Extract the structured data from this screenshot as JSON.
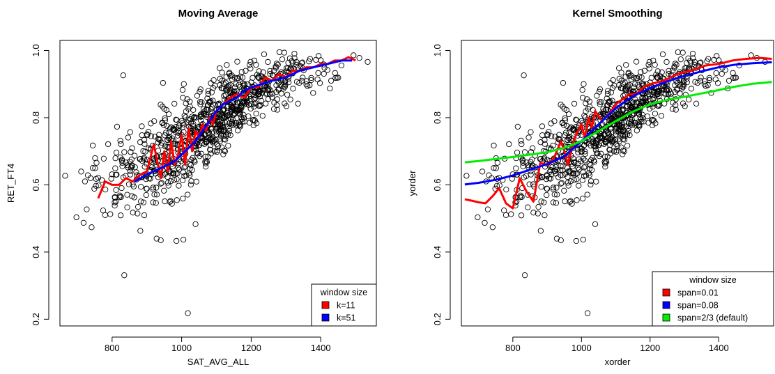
{
  "chart_data": [
    {
      "type": "scatter",
      "title": "Moving Average",
      "xlabel": "SAT_AVG_ALL",
      "ylabel": "RET_FT4",
      "xlim": [
        650,
        1560
      ],
      "ylim": [
        0.18,
        1.03
      ],
      "xticks": [
        800,
        1000,
        1200,
        1400
      ],
      "yticks": [
        0.2,
        0.4,
        0.6,
        0.8,
        1.0
      ],
      "ytick_labels": [
        "0.2",
        "0.4",
        "0.6",
        "0.8",
        "1.0"
      ],
      "legend": {
        "title": "window size",
        "position": "bottom-right",
        "entries": [
          {
            "label": "k=11",
            "color": "#ff0000"
          },
          {
            "label": "k=51",
            "color": "#0000ff"
          }
        ]
      },
      "outliers": [
        {
          "x": 665,
          "y": 0.627
        },
        {
          "x": 718,
          "y": 0.487
        },
        {
          "x": 727,
          "y": 0.527
        },
        {
          "x": 760,
          "y": 0.621
        },
        {
          "x": 776,
          "y": 0.678
        },
        {
          "x": 780,
          "y": 0.51
        },
        {
          "x": 832,
          "y": 0.926
        },
        {
          "x": 835,
          "y": 0.331
        },
        {
          "x": 1018,
          "y": 0.218
        },
        {
          "x": 985,
          "y": 0.433
        },
        {
          "x": 1005,
          "y": 0.437
        },
        {
          "x": 1040,
          "y": 0.483
        },
        {
          "x": 940,
          "y": 0.435
        },
        {
          "x": 1535,
          "y": 0.966
        },
        {
          "x": 1430,
          "y": 0.91
        }
      ],
      "series": [
        {
          "name": "k=11",
          "color": "#ff0000",
          "x": [
            760,
            780,
            800,
            820,
            840,
            860,
            880,
            900,
            920,
            940,
            950,
            960,
            970,
            980,
            990,
            1000,
            1010,
            1020,
            1030,
            1040,
            1050,
            1060,
            1070,
            1080,
            1090,
            1100,
            1110,
            1120,
            1140,
            1160,
            1180,
            1200,
            1220,
            1240,
            1260,
            1280,
            1300,
            1320,
            1340,
            1360,
            1380,
            1400,
            1420,
            1440,
            1460,
            1480,
            1500
          ],
          "y": [
            0.56,
            0.61,
            0.6,
            0.6,
            0.62,
            0.61,
            0.63,
            0.64,
            0.72,
            0.62,
            0.7,
            0.64,
            0.73,
            0.66,
            0.69,
            0.75,
            0.66,
            0.77,
            0.7,
            0.76,
            0.74,
            0.78,
            0.76,
            0.8,
            0.78,
            0.82,
            0.83,
            0.84,
            0.86,
            0.87,
            0.86,
            0.89,
            0.89,
            0.92,
            0.91,
            0.93,
            0.92,
            0.94,
            0.94,
            0.95,
            0.95,
            0.96,
            0.96,
            0.97,
            0.97,
            0.98,
            0.97
          ]
        },
        {
          "name": "k=51",
          "color": "#0000ff",
          "x": [
            865,
            900,
            940,
            980,
            1000,
            1020,
            1040,
            1060,
            1080,
            1100,
            1120,
            1140,
            1160,
            1180,
            1200,
            1230,
            1260,
            1300,
            1340,
            1380,
            1420,
            1460,
            1490
          ],
          "y": [
            0.61,
            0.63,
            0.65,
            0.67,
            0.69,
            0.71,
            0.73,
            0.76,
            0.79,
            0.82,
            0.84,
            0.85,
            0.86,
            0.88,
            0.89,
            0.9,
            0.91,
            0.92,
            0.94,
            0.95,
            0.96,
            0.97,
            0.97
          ]
        }
      ]
    },
    {
      "type": "scatter",
      "title": "Kernel Smoothing",
      "xlabel": "xorder",
      "ylabel": "yorder",
      "xlim": [
        650,
        1560
      ],
      "ylim": [
        0.18,
        1.03
      ],
      "xticks": [
        800,
        1000,
        1200,
        1400
      ],
      "yticks": [
        0.2,
        0.4,
        0.6,
        0.8,
        1.0
      ],
      "ytick_labels": [
        "0.2",
        "0.4",
        "0.6",
        "0.8",
        "1.0"
      ],
      "legend": {
        "title": "window size",
        "position": "bottom-right",
        "entries": [
          {
            "label": "span=0.01",
            "color": "#ff0000"
          },
          {
            "label": "span=0.08",
            "color": "#0000ff"
          },
          {
            "label": "span=2/3 (default)",
            "color": "#00ee00"
          }
        ]
      },
      "outliers": [
        {
          "x": 665,
          "y": 0.627
        },
        {
          "x": 718,
          "y": 0.487
        },
        {
          "x": 727,
          "y": 0.527
        },
        {
          "x": 760,
          "y": 0.621
        },
        {
          "x": 776,
          "y": 0.678
        },
        {
          "x": 780,
          "y": 0.51
        },
        {
          "x": 832,
          "y": 0.926
        },
        {
          "x": 835,
          "y": 0.331
        },
        {
          "x": 1018,
          "y": 0.218
        },
        {
          "x": 985,
          "y": 0.433
        },
        {
          "x": 1005,
          "y": 0.437
        },
        {
          "x": 1040,
          "y": 0.483
        },
        {
          "x": 940,
          "y": 0.435
        },
        {
          "x": 1535,
          "y": 0.966
        },
        {
          "x": 1430,
          "y": 0.91
        }
      ],
      "series": [
        {
          "name": "span=0.01",
          "color": "#ff0000",
          "x": [
            660,
            680,
            700,
            720,
            740,
            760,
            780,
            800,
            820,
            840,
            860,
            880,
            900,
            920,
            940,
            950,
            960,
            980,
            1000,
            1010,
            1020,
            1030,
            1040,
            1060,
            1080,
            1100,
            1120,
            1140,
            1160,
            1180,
            1200,
            1240,
            1280,
            1320,
            1360,
            1400,
            1440,
            1480,
            1520,
            1555
          ],
          "y": [
            0.557,
            0.553,
            0.548,
            0.545,
            0.565,
            0.59,
            0.545,
            0.53,
            0.62,
            0.58,
            0.55,
            0.665,
            0.66,
            0.68,
            0.73,
            0.7,
            0.66,
            0.74,
            0.78,
            0.74,
            0.8,
            0.77,
            0.82,
            0.79,
            0.81,
            0.84,
            0.855,
            0.87,
            0.87,
            0.89,
            0.9,
            0.91,
            0.93,
            0.94,
            0.955,
            0.96,
            0.97,
            0.975,
            0.978,
            0.975
          ]
        },
        {
          "name": "span=0.08",
          "color": "#0000ff",
          "x": [
            660,
            700,
            750,
            800,
            850,
            900,
            950,
            1000,
            1050,
            1100,
            1150,
            1200,
            1250,
            1300,
            1350,
            1400,
            1450,
            1500,
            1555
          ],
          "y": [
            0.601,
            0.606,
            0.615,
            0.628,
            0.645,
            0.662,
            0.685,
            0.73,
            0.78,
            0.828,
            0.864,
            0.888,
            0.908,
            0.924,
            0.938,
            0.95,
            0.958,
            0.962,
            0.965
          ]
        },
        {
          "name": "span=2/3 (default)",
          "color": "#00ee00",
          "x": [
            660,
            700,
            750,
            800,
            850,
            900,
            950,
            1000,
            1050,
            1100,
            1150,
            1200,
            1250,
            1300,
            1350,
            1400,
            1450,
            1500,
            1555
          ],
          "y": [
            0.667,
            0.671,
            0.677,
            0.683,
            0.69,
            0.697,
            0.71,
            0.73,
            0.76,
            0.79,
            0.818,
            0.84,
            0.853,
            0.862,
            0.872,
            0.882,
            0.893,
            0.901,
            0.906
          ]
        }
      ]
    }
  ]
}
